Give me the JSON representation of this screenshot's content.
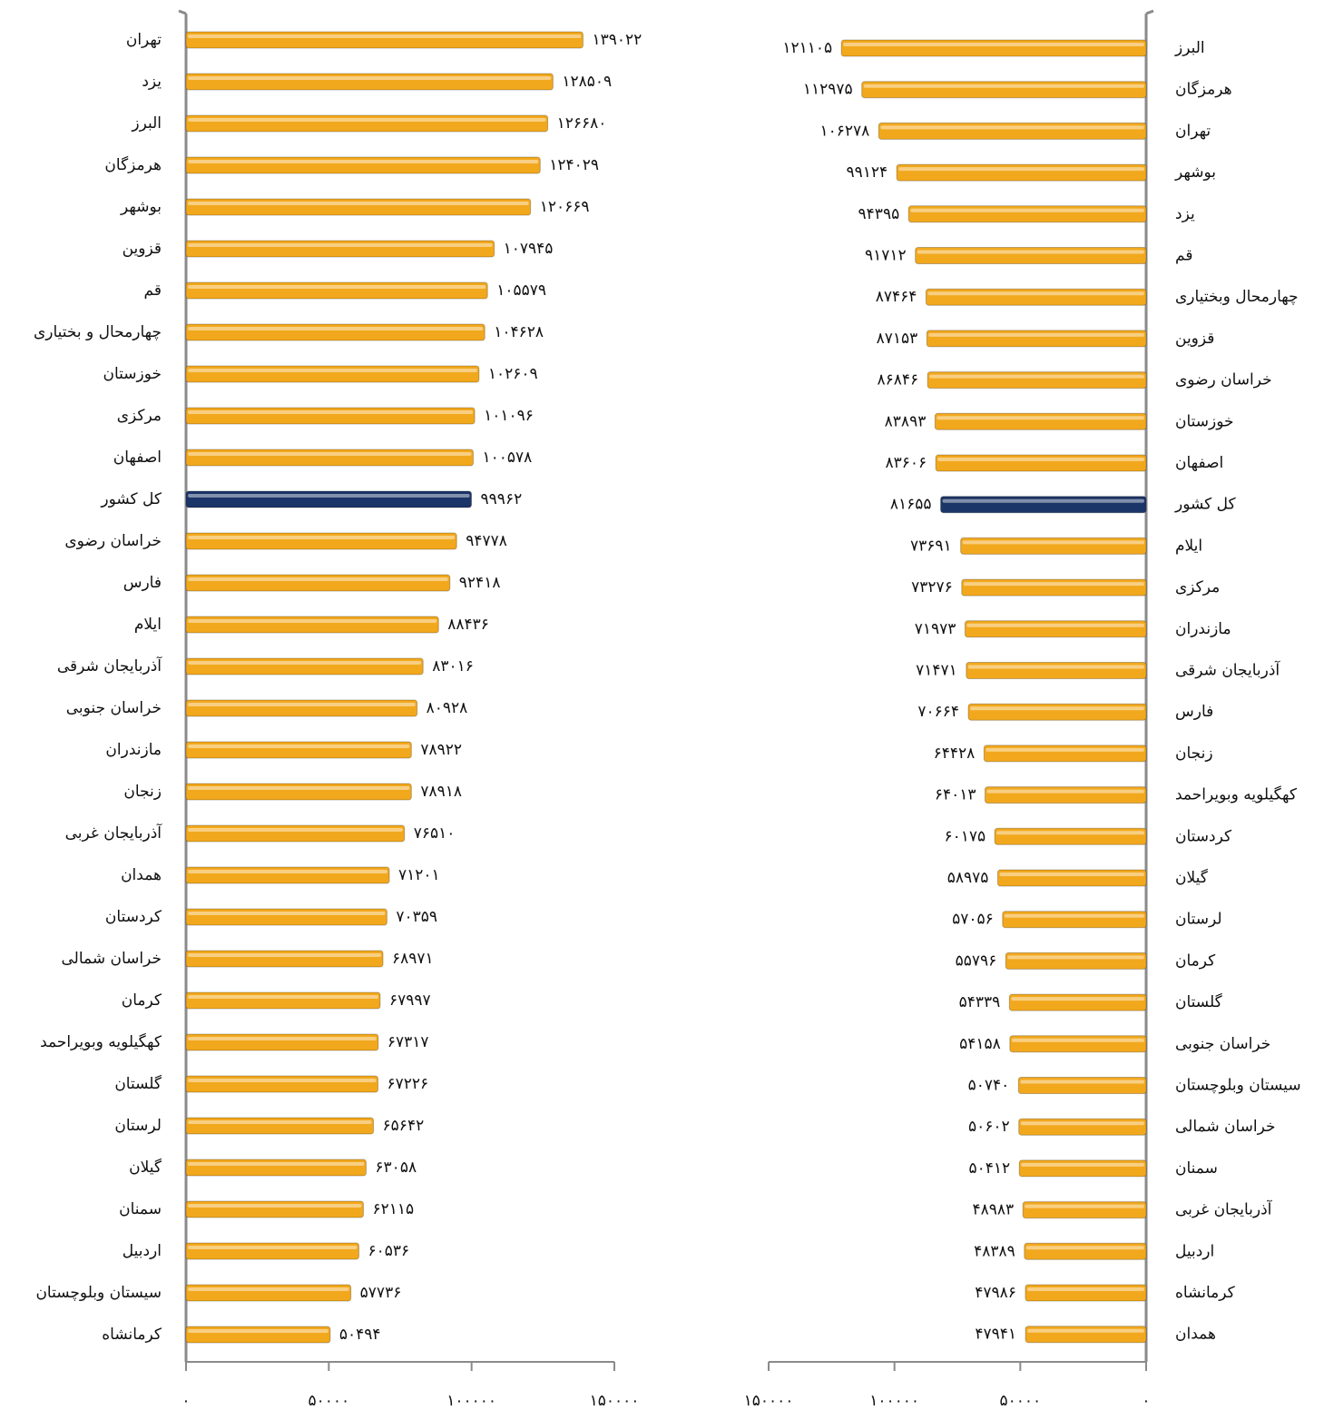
{
  "chart_data": [
    {
      "type": "bar",
      "orientation": "horizontal",
      "x_reversed": false,
      "categories": [
        "تهران",
        "یزد",
        "البرز",
        "هرمزگان",
        "بوشهر",
        "قزوین",
        "قم",
        "چهارمحال و بختیاری",
        "خوزستان",
        "مرکزی",
        "اصفهان",
        "کل کشور",
        "خراسان رضوی",
        "فارس",
        "ایلام",
        "آذربایجان شرقی",
        "خراسان جنوبی",
        "مازندران",
        "زنجان",
        "آذربایجان غربی",
        "همدان",
        "کردستان",
        "خراسان شمالی",
        "کرمان",
        "کهگیلویه وبویراحمد",
        "گلستان",
        "لرستان",
        "گیلان",
        "سمنان",
        "اردبیل",
        "سیستان وبلوچستان",
        "کرمانشاه"
      ],
      "values": [
        139022,
        128509,
        126680,
        124029,
        120669,
        107945,
        105579,
        104628,
        102609,
        101096,
        100578,
        99962,
        94778,
        92418,
        88436,
        83016,
        80928,
        78922,
        78918,
        76510,
        71201,
        70359,
        68971,
        67997,
        67317,
        67226,
        65642,
        63058,
        62115,
        60536,
        57736,
        50494
      ],
      "value_labels": [
        "۱۳۹۰۲۲",
        "۱۲۸۵۰۹",
        "۱۲۶۶۸۰",
        "۱۲۴۰۲۹",
        "۱۲۰۶۶۹",
        "۱۰۷۹۴۵",
        "۱۰۵۵۷۹",
        "۱۰۴۶۲۸",
        "۱۰۲۶۰۹",
        "۱۰۱۰۹۶",
        "۱۰۰۵۷۸",
        "۹۹۹۶۲",
        "۹۴۷۷۸",
        "۹۲۴۱۸",
        "۸۸۴۳۶",
        "۸۳۰۱۶",
        "۸۰۹۲۸",
        "۷۸۹۲۲",
        "۷۸۹۱۸",
        "۷۶۵۱۰",
        "۷۱۲۰۱",
        "۷۰۳۵۹",
        "۶۸۹۷۱",
        "۶۷۹۹۷",
        "۶۷۳۱۷",
        "۶۷۲۲۶",
        "۶۵۶۴۲",
        "۶۳۰۵۸",
        "۶۲۱۱۵",
        "۶۰۵۳۶",
        "۵۷۷۳۶",
        "۵۰۴۹۴"
      ],
      "colors": [
        "#f2a81d",
        "#f2a81d",
        "#f2a81d",
        "#f2a81d",
        "#f2a81d",
        "#f2a81d",
        "#f2a81d",
        "#f2a81d",
        "#f2a81d",
        "#f2a81d",
        "#f2a81d",
        "#1c3568",
        "#f2a81d",
        "#f2a81d",
        "#f2a81d",
        "#f2a81d",
        "#f2a81d",
        "#f2a81d",
        "#f2a81d",
        "#f2a81d",
        "#f2a81d",
        "#f2a81d",
        "#f2a81d",
        "#f2a81d",
        "#f2a81d",
        "#f2a81d",
        "#f2a81d",
        "#f2a81d",
        "#f2a81d",
        "#f2a81d",
        "#f2a81d",
        "#f2a81d"
      ],
      "xlim": [
        0,
        150000
      ],
      "xticks": [
        {
          "value": 0,
          "label": "۰"
        },
        {
          "value": 50000,
          "label": "۵۰۰۰۰"
        },
        {
          "value": 100000,
          "label": "۱۰۰۰۰۰"
        },
        {
          "value": 150000,
          "label": "۱۵۰۰۰۰"
        }
      ]
    },
    {
      "type": "bar",
      "orientation": "horizontal",
      "x_reversed": true,
      "categories": [
        "البرز",
        "هرمزگان",
        "تهران",
        "بوشهر",
        "یزد",
        "قم",
        "چهارمحال وبختیاری",
        "قزوین",
        "خراسان رضوی",
        "خوزستان",
        "اصفهان",
        "کل کشور",
        "ایلام",
        "مرکزی",
        "مازندران",
        "آذربایجان شرقی",
        "فارس",
        "زنجان",
        "کهگیلویه وبویراحمد",
        "کردستان",
        "گیلان",
        "لرستان",
        "کرمان",
        "گلستان",
        "خراسان جنوبی",
        "سیستان وبلوچستان",
        "خراسان شمالی",
        "سمنان",
        "آذربایجان غربی",
        "اردبیل",
        "کرمانشاه",
        "همدان"
      ],
      "values": [
        121105,
        112975,
        106278,
        99124,
        94395,
        91712,
        87464,
        87153,
        86846,
        83893,
        83606,
        81655,
        73691,
        73276,
        71973,
        71471,
        70664,
        64428,
        64013,
        60175,
        58975,
        57056,
        55796,
        54339,
        54158,
        50740,
        50602,
        50412,
        48983,
        48389,
        47986,
        47941
      ],
      "value_labels": [
        "۱۲۱۱۰۵",
        "۱۱۲۹۷۵",
        "۱۰۶۲۷۸",
        "۹۹۱۲۴",
        "۹۴۳۹۵",
        "۹۱۷۱۲",
        "۸۷۴۶۴",
        "۸۷۱۵۳",
        "۸۶۸۴۶",
        "۸۳۸۹۳",
        "۸۳۶۰۶",
        "۸۱۶۵۵",
        "۷۳۶۹۱",
        "۷۳۲۷۶",
        "۷۱۹۷۳",
        "۷۱۴۷۱",
        "۷۰۶۶۴",
        "۶۴۴۲۸",
        "۶۴۰۱۳",
        "۶۰۱۷۵",
        "۵۸۹۷۵",
        "۵۷۰۵۶",
        "۵۵۷۹۶",
        "۵۴۳۳۹",
        "۵۴۱۵۸",
        "۵۰۷۴۰",
        "۵۰۶۰۲",
        "۵۰۴۱۲",
        "۴۸۹۸۳",
        "۴۸۳۸۹",
        "۴۷۹۸۶",
        "۴۷۹۴۱"
      ],
      "colors": [
        "#f2a81d",
        "#f2a81d",
        "#f2a81d",
        "#f2a81d",
        "#f2a81d",
        "#f2a81d",
        "#f2a81d",
        "#f2a81d",
        "#f2a81d",
        "#f2a81d",
        "#f2a81d",
        "#1c3568",
        "#f2a81d",
        "#f2a81d",
        "#f2a81d",
        "#f2a81d",
        "#f2a81d",
        "#f2a81d",
        "#f2a81d",
        "#f2a81d",
        "#f2a81d",
        "#f2a81d",
        "#f2a81d",
        "#f2a81d",
        "#f2a81d",
        "#f2a81d",
        "#f2a81d",
        "#f2a81d",
        "#f2a81d",
        "#f2a81d",
        "#f2a81d",
        "#f2a81d"
      ],
      "xlim": [
        0,
        150000
      ],
      "xticks": [
        {
          "value": 0,
          "label": "۰"
        },
        {
          "value": 50000,
          "label": "۵۰۰۰۰"
        },
        {
          "value": 100000,
          "label": "۱۰۰۰۰۰"
        },
        {
          "value": 150000,
          "label": "۱۵۰۰۰۰"
        }
      ]
    }
  ]
}
